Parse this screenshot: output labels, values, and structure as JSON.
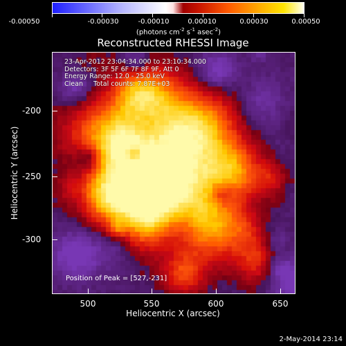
{
  "colorbar": {
    "tick_labels": [
      "-0.00050",
      "-0.00030",
      "-0.00010",
      "0.00010",
      "0.00030",
      "0.00050"
    ],
    "units_text": "(photons cm",
    "units_sup1": "-2",
    "units_mid": " s",
    "units_sup2": "-1",
    "units_mid2": " asec",
    "units_sup3": "-2",
    "units_close": ")"
  },
  "title": "Reconstructed RHESSI Image",
  "info": {
    "time_range": "23-Apr-2012 23:04:34.000 to 23:10:34.000",
    "detectors": "Detectors: 3F 5F 6F 7F 8F 9F, Att 0",
    "energy": "Energy Range: 12.0 - 25.0 keV",
    "clean": "Clean     Total counts: 7.87E+03"
  },
  "peak_text": "Position of Peak = [527,-231]",
  "axes": {
    "xlabel": "Heliocentric X (arcsec)",
    "ylabel": "Heliocentric Y (arcsec)",
    "x_ticks": [
      "500",
      "550",
      "600",
      "650"
    ],
    "y_ticks": [
      "-200",
      "-250",
      "-300"
    ]
  },
  "footer_stamp": "2-May-2014 23:14"
}
